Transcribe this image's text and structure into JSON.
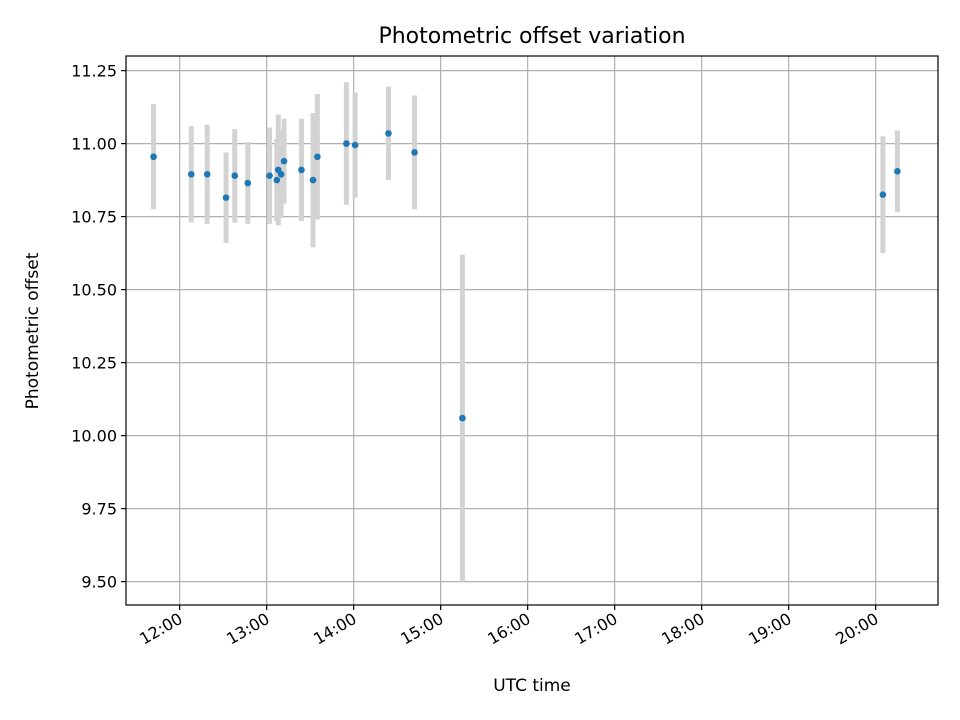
{
  "chart_data": {
    "type": "scatter",
    "title": "Photometric offset variation",
    "xlabel": "UTC time",
    "ylabel": "Photometric offset",
    "xlim": [
      "11:23",
      "20:43"
    ],
    "ylim": [
      9.42,
      11.3
    ],
    "xticks": [
      "12:00",
      "13:00",
      "14:00",
      "15:00",
      "16:00",
      "17:00",
      "18:00",
      "19:00",
      "20:00"
    ],
    "yticks": [
      "9.50",
      "9.75",
      "10.00",
      "10.25",
      "10.50",
      "10.75",
      "11.00",
      "11.25"
    ],
    "grid": true,
    "colors": {
      "points": "#1f77b4",
      "errorbars": "#d3d3d3"
    },
    "points": [
      {
        "x": "11:42",
        "y": 10.955,
        "err": 0.18
      },
      {
        "x": "12:08",
        "y": 10.895,
        "err": 0.165
      },
      {
        "x": "12:19",
        "y": 10.895,
        "err": 0.17
      },
      {
        "x": "12:32",
        "y": 10.815,
        "err": 0.155
      },
      {
        "x": "12:38",
        "y": 10.89,
        "err": 0.16
      },
      {
        "x": "12:47",
        "y": 10.865,
        "err": 0.14
      },
      {
        "x": "13:02",
        "y": 10.89,
        "err": 0.165
      },
      {
        "x": "13:07",
        "y": 10.875,
        "err": 0.14
      },
      {
        "x": "13:08",
        "y": 10.91,
        "err": 0.19
      },
      {
        "x": "13:10",
        "y": 10.895,
        "err": 0.15
      },
      {
        "x": "13:12",
        "y": 10.94,
        "err": 0.145
      },
      {
        "x": "13:24",
        "y": 10.91,
        "err": 0.175
      },
      {
        "x": "13:32",
        "y": 10.875,
        "err": 0.23
      },
      {
        "x": "13:35",
        "y": 10.955,
        "err": 0.215
      },
      {
        "x": "13:55",
        "y": 11.0,
        "err": 0.21
      },
      {
        "x": "14:01",
        "y": 10.995,
        "err": 0.18
      },
      {
        "x": "14:24",
        "y": 11.035,
        "err": 0.16
      },
      {
        "x": "14:42",
        "y": 10.97,
        "err": 0.195
      },
      {
        "x": "15:15",
        "y": 10.06,
        "err": 0.56
      },
      {
        "x": "20:05",
        "y": 10.825,
        "err": 0.2
      },
      {
        "x": "20:15",
        "y": 10.905,
        "err": 0.14
      }
    ]
  }
}
